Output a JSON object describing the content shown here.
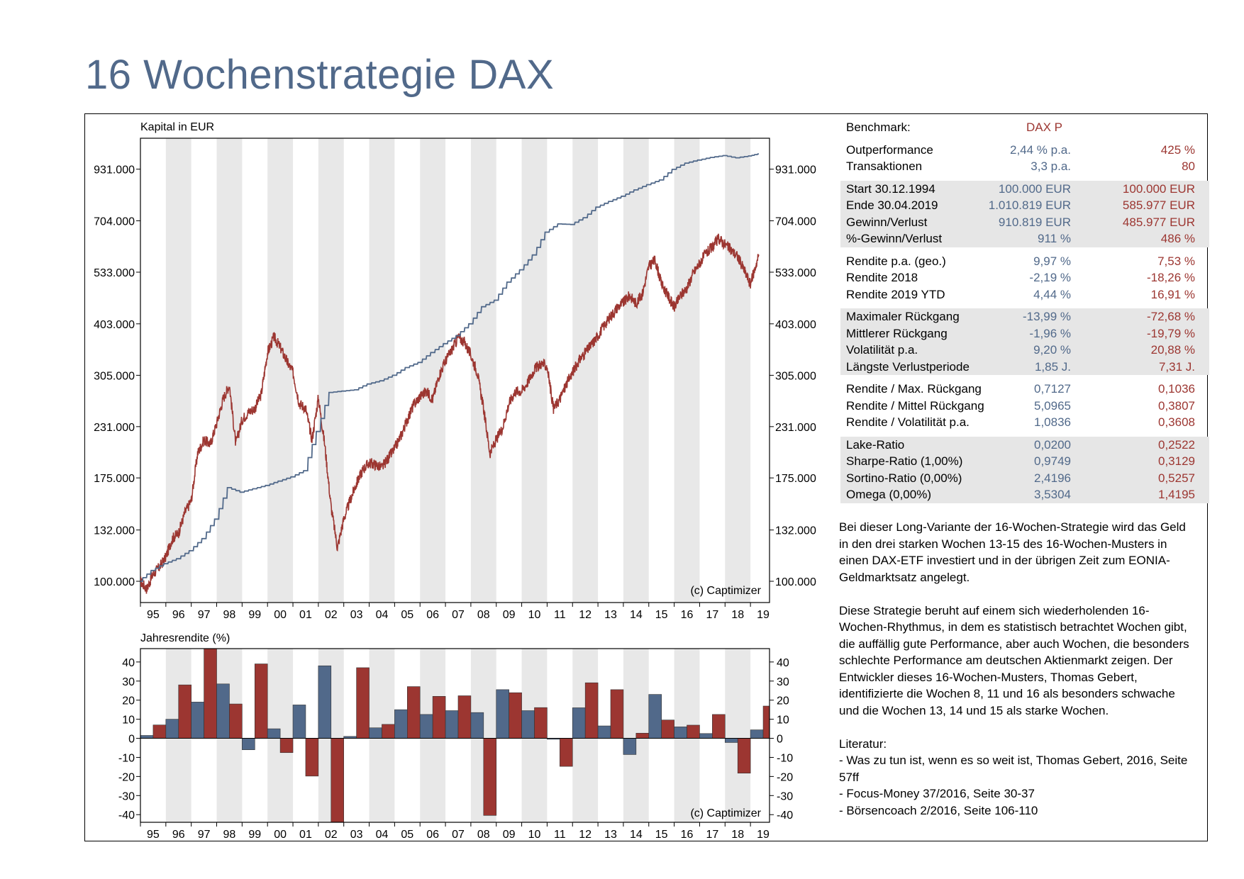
{
  "title": "16 Wochenstrategie DAX",
  "colors": {
    "strategy": "#51698a",
    "benchmark": "#9c3631",
    "band": "#e8e8e8",
    "title": "#51698a"
  },
  "chart_data": [
    {
      "type": "line",
      "title": "Kapital in EUR",
      "y_scale": "log",
      "yticks": [
        "100.000",
        "132.000",
        "175.000",
        "231.000",
        "305.000",
        "403.000",
        "533.000",
        "704.000",
        "931.000"
      ],
      "ytick_values": [
        100000,
        132000,
        175000,
        231000,
        305000,
        403000,
        533000,
        704000,
        931000
      ],
      "ylim": [
        100000,
        1000000
      ],
      "x_tick_labels": [
        "95",
        "96",
        "97",
        "98",
        "99",
        "00",
        "01",
        "02",
        "03",
        "04",
        "05",
        "06",
        "07",
        "08",
        "09",
        "10",
        "11",
        "12",
        "13",
        "14",
        "15",
        "16",
        "17",
        "18",
        "19"
      ],
      "watermark": "(c) Captimizer",
      "grid": "alternating year bands",
      "series": [
        {
          "name": "16 Wochenstrategie",
          "x": [
            1995.0,
            1995.5,
            1996.0,
            1996.5,
            1997.0,
            1997.5,
            1998.0,
            1998.5,
            1999.0,
            1999.5,
            2000.0,
            2000.5,
            2001.0,
            2001.5,
            2002.0,
            2002.5,
            2003.0,
            2003.5,
            2004.0,
            2004.5,
            2005.0,
            2005.5,
            2006.0,
            2006.5,
            2007.0,
            2007.5,
            2008.0,
            2008.5,
            2009.0,
            2009.5,
            2010.0,
            2010.5,
            2011.0,
            2011.5,
            2012.0,
            2012.5,
            2013.0,
            2013.5,
            2014.0,
            2014.5,
            2015.0,
            2015.5,
            2016.0,
            2016.5,
            2017.0,
            2017.5,
            2018.0,
            2018.5,
            2019.0,
            2019.33
          ],
          "y": [
            100000,
            106000,
            110000,
            113000,
            118000,
            126000,
            140000,
            166000,
            162000,
            165000,
            168000,
            172000,
            176000,
            182000,
            225000,
            278000,
            280000,
            282000,
            291000,
            296000,
            305000,
            318000,
            327000,
            345000,
            362000,
            378000,
            403000,
            442000,
            458000,
            505000,
            540000,
            585000,
            662000,
            692000,
            690000,
            716000,
            758000,
            782000,
            804000,
            832000,
            856000,
            878000,
            930000,
            962000,
            978000,
            992000,
            1002000,
            990000,
            1000000,
            1010819
          ]
        },
        {
          "name": "DAX P",
          "x": [
            1995.0,
            1995.25,
            1995.5,
            1995.75,
            1996.0,
            1996.25,
            1996.5,
            1996.75,
            1997.0,
            1997.25,
            1997.5,
            1997.75,
            1998.0,
            1998.25,
            1998.5,
            1998.75,
            1999.0,
            1999.25,
            1999.5,
            1999.75,
            2000.0,
            2000.25,
            2000.5,
            2000.75,
            2001.0,
            2001.25,
            2001.5,
            2001.75,
            2002.0,
            2002.25,
            2002.5,
            2002.75,
            2003.0,
            2003.25,
            2003.5,
            2003.75,
            2004.0,
            2004.25,
            2004.5,
            2004.75,
            2005.0,
            2005.25,
            2005.5,
            2005.75,
            2006.0,
            2006.25,
            2006.5,
            2006.75,
            2007.0,
            2007.25,
            2007.5,
            2007.75,
            2008.0,
            2008.25,
            2008.5,
            2008.75,
            2009.0,
            2009.25,
            2009.5,
            2009.75,
            2010.0,
            2010.25,
            2010.5,
            2010.75,
            2011.0,
            2011.25,
            2011.5,
            2011.75,
            2012.0,
            2012.25,
            2012.5,
            2012.75,
            2013.0,
            2013.25,
            2013.5,
            2013.75,
            2014.0,
            2014.25,
            2014.5,
            2014.75,
            2015.0,
            2015.25,
            2015.5,
            2015.75,
            2016.0,
            2016.25,
            2016.5,
            2016.75,
            2017.0,
            2017.25,
            2017.5,
            2017.75,
            2018.0,
            2018.25,
            2018.5,
            2018.75,
            2019.0,
            2019.33
          ],
          "y": [
            100000,
            96000,
            104000,
            108000,
            114000,
            126000,
            130000,
            145000,
            155000,
            200000,
            215000,
            210000,
            235000,
            268000,
            290000,
            210000,
            240000,
            250000,
            255000,
            275000,
            345000,
            375000,
            355000,
            330000,
            310000,
            262000,
            255000,
            215000,
            270000,
            210000,
            150000,
            120000,
            140000,
            155000,
            170000,
            183000,
            190000,
            188000,
            185000,
            195000,
            205000,
            220000,
            240000,
            260000,
            272000,
            280000,
            268000,
            305000,
            330000,
            350000,
            375000,
            365000,
            340000,
            310000,
            255000,
            200000,
            215000,
            230000,
            262000,
            280000,
            280000,
            295000,
            315000,
            325000,
            320000,
            255000,
            268000,
            290000,
            310000,
            330000,
            345000,
            360000,
            378000,
            400000,
            420000,
            440000,
            452000,
            470000,
            450000,
            475000,
            550000,
            570000,
            500000,
            470000,
            440000,
            470000,
            490000,
            530000,
            560000,
            590000,
            610000,
            640000,
            620000,
            600000,
            580000,
            540000,
            500000,
            585977
          ]
        }
      ]
    },
    {
      "type": "bar",
      "title": "Jahresrendite (%)",
      "yticks": [
        "40",
        "30",
        "20",
        "10",
        "0",
        "-10",
        "-20",
        "-30",
        "-40"
      ],
      "ylim": [
        -44,
        47
      ],
      "categories": [
        "95",
        "96",
        "97",
        "98",
        "99",
        "00",
        "01",
        "02",
        "03",
        "04",
        "05",
        "06",
        "07",
        "08",
        "09",
        "10",
        "11",
        "12",
        "13",
        "14",
        "15",
        "16",
        "17",
        "18",
        "19"
      ],
      "watermark": "(c) Captimizer",
      "series": [
        {
          "name": "16 Wochenstrategie",
          "values": [
            1.5,
            10.0,
            19.0,
            28.5,
            -6.0,
            5.0,
            17.5,
            38.0,
            1.0,
            5.5,
            15.0,
            12.5,
            14.5,
            13.5,
            25.5,
            14.5,
            -0.5,
            16.0,
            6.5,
            -8.5,
            23.0,
            6.0,
            2.5,
            -2.19,
            4.44
          ]
        },
        {
          "name": "DAX P",
          "values": [
            7.0,
            28.0,
            47.0,
            18.0,
            39.0,
            -7.5,
            -19.8,
            -43.9,
            37.0,
            7.3,
            27.1,
            22.0,
            22.3,
            -40.4,
            23.9,
            16.1,
            -14.7,
            29.1,
            25.5,
            2.7,
            9.6,
            6.9,
            12.5,
            -18.26,
            16.91
          ]
        }
      ]
    }
  ],
  "stats": {
    "header": {
      "label": "Benchmark:",
      "v1": "DAX P",
      "v2": ""
    },
    "groups": [
      {
        "shaded": false,
        "rows": [
          {
            "label": "Outperformance",
            "v1": "2,44 % p.a.",
            "v2": "425 %"
          },
          {
            "label": "Transaktionen",
            "v1": "3,3 p.a.",
            "v2": "80"
          }
        ]
      },
      {
        "shaded": true,
        "rows": [
          {
            "label": "Start  30.12.1994",
            "v1": "100.000 EUR",
            "v2": "100.000 EUR"
          },
          {
            "label": "Ende 30.04.2019",
            "v1": "1.010.819 EUR",
            "v2": "585.977 EUR"
          },
          {
            "label": "Gewinn/Verlust",
            "v1": "910.819 EUR",
            "v2": "485.977 EUR"
          },
          {
            "label": "%-Gewinn/Verlust",
            "v1": "911 %",
            "v2": "486 %"
          }
        ]
      },
      {
        "shaded": false,
        "rows": [
          {
            "label": "Rendite p.a. (geo.)",
            "v1": "9,97 %",
            "v2": "7,53 %"
          },
          {
            "label": "Rendite 2018",
            "v1": "-2,19 %",
            "v2": "-18,26 %"
          },
          {
            "label": "Rendite 2019 YTD",
            "v1": "4,44 %",
            "v2": "16,91 %"
          }
        ]
      },
      {
        "shaded": true,
        "rows": [
          {
            "label": "Maximaler Rückgang",
            "v1": "-13,99 %",
            "v2": "-72,68 %"
          },
          {
            "label": "Mittlerer Rückgang",
            "v1": "-1,96 %",
            "v2": "-19,79 %"
          },
          {
            "label": "Volatilität p.a.",
            "v1": "9,20 %",
            "v2": "20,88 %"
          },
          {
            "label": "Längste Verlustperiode",
            "v1": "1,85 J.",
            "v2": "7,31 J."
          }
        ]
      },
      {
        "shaded": false,
        "rows": [
          {
            "label": "Rendite / Max. Rückgang",
            "v1": "0,7127",
            "v2": "0,1036"
          },
          {
            "label": "Rendite / Mittel Rückgang",
            "v1": "5,0965",
            "v2": "0,3807"
          },
          {
            "label": "Rendite / Volatilität p.a.",
            "v1": "1,0836",
            "v2": "0,3608"
          }
        ]
      },
      {
        "shaded": true,
        "rows": [
          {
            "label": "Lake-Ratio",
            "v1": "0,0200",
            "v2": "0,2522"
          },
          {
            "label": "Sharpe-Ratio (1,00%)",
            "v1": "0,9749",
            "v2": "0,3129"
          },
          {
            "label": "Sortino-Ratio (0,00%)",
            "v1": "2,4196",
            "v2": "0,5257"
          },
          {
            "label": "Omega (0,00%)",
            "v1": "3,5304",
            "v2": "1,4195"
          }
        ]
      }
    ]
  },
  "description": {
    "p1": "Bei dieser Long-Variante der 16-Wochen-Strategie wird das Geld\nin den drei starken Wochen 13-15 des 16-Wochen-Musters in\neinen DAX-ETF investiert und in der übrigen Zeit zum EONIA-\nGeldmarktsatz angelegt.",
    "p2": "Diese Strategie beruht auf einem sich wiederholenden 16-\nWochen-Rhythmus, in dem es statistisch betrachtet Wochen gibt,\ndie auffällig gute Performance, aber auch Wochen, die besonders\nschlechte Performance am deutschen Aktienmarkt zeigen. Der\nEntwickler dieses 16-Wochen-Musters, Thomas Gebert,\nidentifizierte die Wochen 8, 11 und 16 als besonders schwache\nund die Wochen 13, 14 und 15 als starke Wochen.",
    "lit_heading": "Literatur:",
    "lit": [
      "- Was zu tun ist, wenn es so weit ist, Thomas Gebert, 2016, Seite\n57ff",
      "- Focus-Money 37/2016, Seite 30-37",
      "- Börsencoach 2/2016, Seite 106-110"
    ]
  }
}
